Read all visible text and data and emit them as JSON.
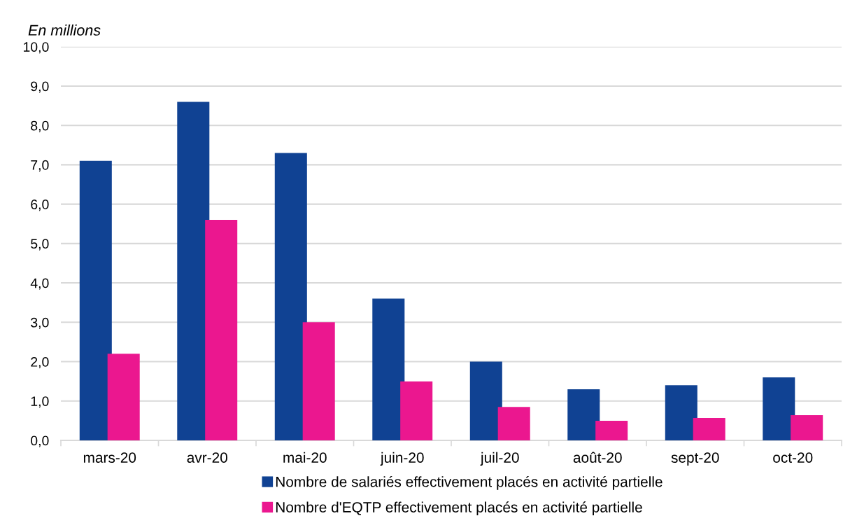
{
  "chart_data": {
    "type": "bar",
    "ylabel": "En millions",
    "categories": [
      "mars-20",
      "avr-20",
      "mai-20",
      "juin-20",
      "juil-20",
      "août-20",
      "sept-20",
      "oct-20"
    ],
    "series": [
      {
        "name": "Nombre de salariés effectivement placés en activité partielle",
        "color": "#104293",
        "values": [
          7.1,
          8.6,
          7.3,
          3.6,
          2.0,
          1.3,
          1.4,
          1.6
        ]
      },
      {
        "name": "Nombre d'EQTP effectivement placés en activité partielle",
        "color": "#eb178f",
        "values": [
          2.2,
          5.6,
          3.0,
          1.5,
          0.85,
          0.5,
          0.57,
          0.64
        ]
      }
    ],
    "ylim": [
      0,
      10
    ],
    "yticks": [
      {
        "value": 0,
        "label": "0,0"
      },
      {
        "value": 1,
        "label": "1,0"
      },
      {
        "value": 2,
        "label": "2,0"
      },
      {
        "value": 3,
        "label": "3,0"
      },
      {
        "value": 4,
        "label": "4,0"
      },
      {
        "value": 5,
        "label": "5,0"
      },
      {
        "value": 6,
        "label": "6,0"
      },
      {
        "value": 7,
        "label": "7,0"
      },
      {
        "value": 8,
        "label": "8,0"
      },
      {
        "value": 9,
        "label": "9,0"
      },
      {
        "value": 10,
        "label": "10,0"
      }
    ],
    "grid": "y",
    "legend": "bottom"
  }
}
